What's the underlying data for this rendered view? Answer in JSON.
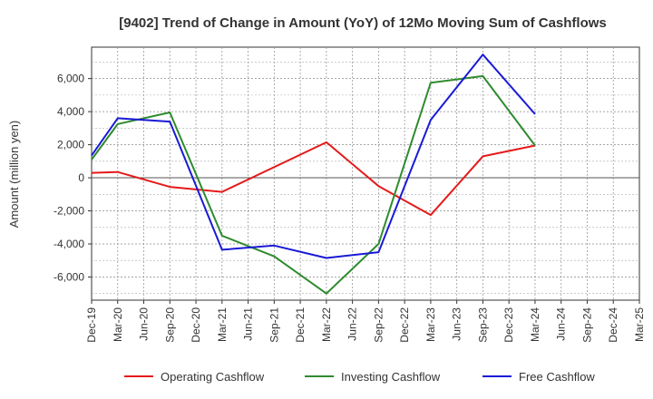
{
  "chart_data": {
    "type": "line",
    "title": "[9402]  Trend of Change in Amount (YoY) of 12Mo Moving Sum of Cashflows",
    "xlabel": "",
    "ylabel": "Amount (million yen)",
    "ylim": [
      -7400,
      7900
    ],
    "yticks": [
      -6000,
      -4000,
      -2000,
      0,
      2000,
      4000,
      6000
    ],
    "ytick_labels": [
      "-6,000",
      "-4,000",
      "-2,000",
      "0",
      "2,000",
      "4,000",
      "6,000"
    ],
    "categories": [
      "Dec-19",
      "Mar-20",
      "Jun-20",
      "Sep-20",
      "Dec-20",
      "Mar-21",
      "Jun-21",
      "Sep-21",
      "Dec-21",
      "Mar-22",
      "Jun-22",
      "Sep-22",
      "Dec-22",
      "Mar-23",
      "Jun-23",
      "Sep-23",
      "Dec-23",
      "Mar-24",
      "Jun-24",
      "Sep-24",
      "Dec-24",
      "Mar-25"
    ],
    "grid": true,
    "legend_position": "bottom",
    "series": [
      {
        "name": "Operating Cashflow",
        "color": "#e41a1a",
        "values": [
          300,
          350,
          null,
          -550,
          null,
          -850,
          null,
          null,
          null,
          2150,
          null,
          -500,
          null,
          -2250,
          null,
          1300,
          null,
          1950,
          null,
          null,
          null,
          null
        ]
      },
      {
        "name": "Investing Cashflow",
        "color": "#2e8b2e",
        "values": [
          1100,
          3250,
          null,
          3950,
          null,
          -3500,
          null,
          -4750,
          null,
          -7000,
          null,
          -4000,
          null,
          5750,
          null,
          6150,
          null,
          1950,
          null,
          null,
          null,
          null
        ]
      },
      {
        "name": "Free Cashflow",
        "color": "#1a1ad6",
        "values": [
          1350,
          3600,
          null,
          3400,
          null,
          -4350,
          null,
          -4100,
          null,
          -4850,
          null,
          -4500,
          null,
          3500,
          null,
          7450,
          null,
          3850,
          null,
          null,
          null,
          null
        ]
      }
    ]
  }
}
